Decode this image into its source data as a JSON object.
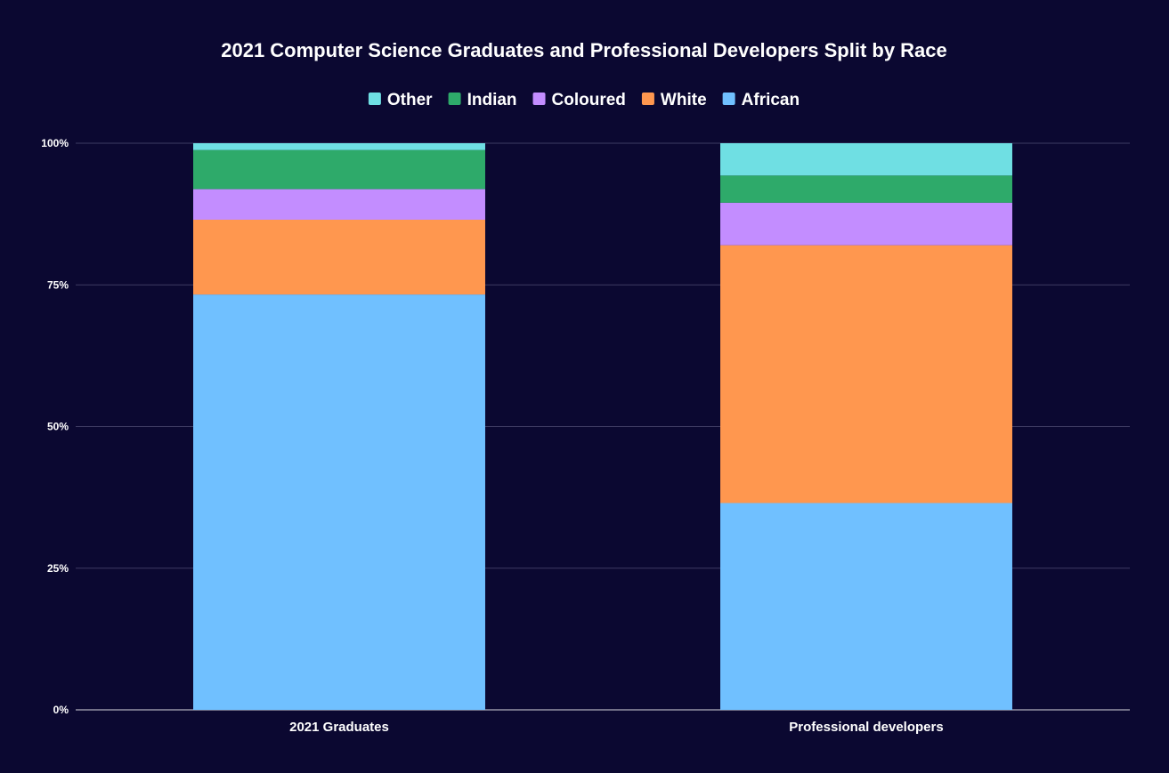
{
  "chart_data": {
    "type": "bar",
    "stacked": true,
    "percent": true,
    "title": "2021 Computer Science Graduates and Professional Developers Split by Race",
    "categories": [
      "2021 Graduates",
      "Professional developers"
    ],
    "series": [
      {
        "name": "African",
        "color": "#70c0ff",
        "values": [
          73.3,
          36.5
        ]
      },
      {
        "name": "White",
        "color": "#ff974f",
        "values": [
          13.2,
          45.5
        ]
      },
      {
        "name": "Coloured",
        "color": "#c38dff",
        "values": [
          5.4,
          7.5
        ]
      },
      {
        "name": "Indian",
        "color": "#2eaa6a",
        "values": [
          6.9,
          4.8
        ]
      },
      {
        "name": "Other",
        "color": "#6fdfe3",
        "values": [
          1.2,
          5.7
        ]
      }
    ],
    "legend_order": [
      "Other",
      "Indian",
      "Coloured",
      "White",
      "African"
    ],
    "yticks": [
      "0%",
      "25%",
      "50%",
      "75%",
      "100%"
    ],
    "ylim": [
      0,
      100
    ],
    "grid": true,
    "legend_position": "top-center"
  }
}
